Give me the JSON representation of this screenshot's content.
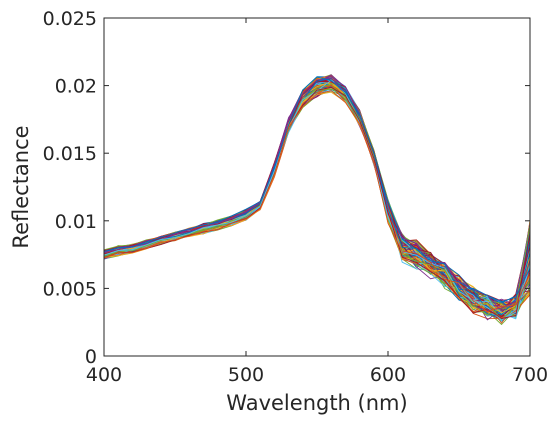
{
  "chart_data": {
    "type": "line",
    "title": "",
    "xlabel": "Wavelength (nm)",
    "ylabel": "Reflectance",
    "xlim": [
      400,
      700
    ],
    "ylim": [
      0,
      0.025
    ],
    "grid": false,
    "legend": "none",
    "x_ticks": [
      "400",
      "500",
      "600",
      "700"
    ],
    "y_ticks": [
      "0",
      "0.005",
      "0.01",
      "0.015",
      "0.02",
      "0.025"
    ],
    "x": [
      400,
      410,
      420,
      430,
      440,
      450,
      460,
      470,
      480,
      490,
      500,
      510,
      520,
      530,
      540,
      550,
      560,
      570,
      580,
      590,
      600,
      610,
      620,
      630,
      640,
      650,
      660,
      670,
      680,
      690,
      700
    ],
    "series_count": 100,
    "colors": [
      "#0072BD",
      "#D95319",
      "#EDB120",
      "#7E2F8E",
      "#77AC30",
      "#4DBEEE",
      "#A2142F"
    ],
    "series": [
      {
        "values": [
          0.0072,
          0.0075,
          0.0077,
          0.008,
          0.0083,
          0.0086,
          0.0089,
          0.0091,
          0.0094,
          0.0097,
          0.0101,
          0.0109,
          0.0135,
          0.0167,
          0.0186,
          0.0194,
          0.0197,
          0.019,
          0.0172,
          0.0144,
          0.0104,
          0.0076,
          0.007,
          0.0063,
          0.0056,
          0.0047,
          0.0038,
          0.0033,
          0.003,
          0.0033,
          0.007
        ]
      },
      {
        "values": [
          0.0078,
          0.0081,
          0.0082,
          0.0085,
          0.0088,
          0.0091,
          0.0094,
          0.0097,
          0.01,
          0.0103,
          0.0108,
          0.0114,
          0.0141,
          0.0174,
          0.0195,
          0.0204,
          0.0206,
          0.0198,
          0.018,
          0.015,
          0.011,
          0.0084,
          0.008,
          0.0072,
          0.0064,
          0.0053,
          0.0045,
          0.004,
          0.0036,
          0.0041,
          0.009
        ]
      },
      {
        "values": [
          0.0075,
          0.0078,
          0.0079,
          0.0082,
          0.0085,
          0.0089,
          0.0092,
          0.0094,
          0.0097,
          0.01,
          0.0104,
          0.0111,
          0.0138,
          0.0171,
          0.019,
          0.0199,
          0.0201,
          0.0194,
          0.0176,
          0.0147,
          0.0107,
          0.008,
          0.0075,
          0.0067,
          0.006,
          0.005,
          0.0041,
          0.0036,
          0.0033,
          0.0037,
          0.008
        ]
      }
    ]
  }
}
